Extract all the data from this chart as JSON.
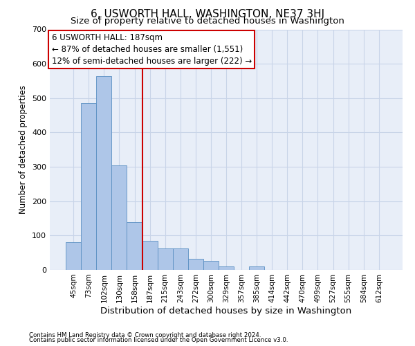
{
  "title": "6, USWORTH HALL, WASHINGTON, NE37 3HJ",
  "subtitle": "Size of property relative to detached houses in Washington",
  "xlabel": "Distribution of detached houses by size in Washington",
  "ylabel": "Number of detached properties",
  "footnote1": "Contains HM Land Registry data © Crown copyright and database right 2024.",
  "footnote2": "Contains public sector information licensed under the Open Government Licence v3.0.",
  "categories": [
    "45sqm",
    "73sqm",
    "102sqm",
    "130sqm",
    "158sqm",
    "187sqm",
    "215sqm",
    "243sqm",
    "272sqm",
    "300sqm",
    "329sqm",
    "357sqm",
    "385sqm",
    "414sqm",
    "442sqm",
    "470sqm",
    "499sqm",
    "527sqm",
    "555sqm",
    "584sqm",
    "612sqm"
  ],
  "values": [
    80,
    485,
    565,
    305,
    138,
    85,
    62,
    62,
    32,
    27,
    11,
    0,
    10,
    0,
    0,
    0,
    0,
    0,
    0,
    0,
    0
  ],
  "bar_color": "#aec6e8",
  "bar_edge_color": "#5a8fc2",
  "vline_x_index": 5,
  "vline_color": "#cc0000",
  "annotation_line1": "6 USWORTH HALL: 187sqm",
  "annotation_line2": "← 87% of detached houses are smaller (1,551)",
  "annotation_line3": "12% of semi-detached houses are larger (222) →",
  "ylim": [
    0,
    700
  ],
  "yticks": [
    0,
    100,
    200,
    300,
    400,
    500,
    600,
    700
  ],
  "bg_color": "#e8eef8",
  "grid_color": "#c8d4e8",
  "title_fontsize": 11,
  "subtitle_fontsize": 9.5,
  "xlabel_fontsize": 9.5,
  "ylabel_fontsize": 8.5,
  "annotation_fontsize": 8.5,
  "tick_fontsize": 7.5,
  "ytick_fontsize": 8
}
